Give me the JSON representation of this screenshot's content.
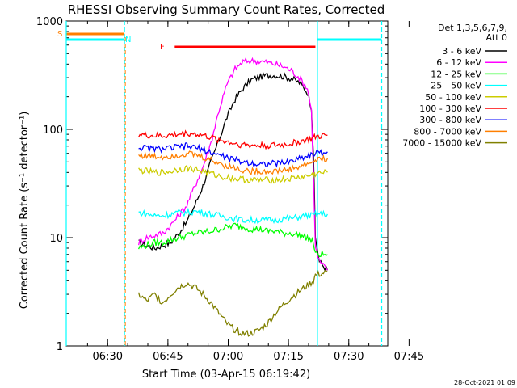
{
  "chart_data": {
    "type": "line",
    "title": "RHESSI Observing Summary Count Rates, Corrected",
    "xlabel": "Start Time (03-Apr-15 06:19:42)",
    "ylabel": "Corrected Count Rate (s⁻¹ detector⁻¹)",
    "yscale": "log",
    "ylim": [
      1,
      1000
    ],
    "xlim_minutes": [
      0,
      80
    ],
    "x_ticks": [
      "06:30",
      "06:45",
      "07:00",
      "07:15",
      "07:30",
      "07:45"
    ],
    "y_ticks": [
      "1",
      "10",
      "100",
      "1000"
    ],
    "legend_header": [
      "Det 1,3,5,6,7,9,",
      "Att 0"
    ],
    "timestamp": "28-Oct-2021 01:09",
    "flags": [
      {
        "label": "S",
        "color": "#ff7f00"
      },
      {
        "label": "N",
        "color": "#00ffff"
      },
      {
        "label": "F",
        "color": "#ff0000"
      }
    ],
    "series": [
      {
        "name": "3 - 6 keV",
        "color": "#000000",
        "points": [
          [
            18,
            9
          ],
          [
            20,
            8.5
          ],
          [
            22,
            8
          ],
          [
            24,
            8.5
          ],
          [
            26,
            9
          ],
          [
            28,
            11
          ],
          [
            30,
            14
          ],
          [
            32,
            20
          ],
          [
            34,
            30
          ],
          [
            36,
            50
          ],
          [
            38,
            80
          ],
          [
            40,
            130
          ],
          [
            42,
            190
          ],
          [
            44,
            240
          ],
          [
            46,
            285
          ],
          [
            48,
            305
          ],
          [
            50,
            315
          ],
          [
            52,
            315
          ],
          [
            54,
            308
          ],
          [
            56,
            295
          ],
          [
            58,
            270
          ],
          [
            60,
            220
          ],
          [
            61,
            160
          ],
          [
            61.5,
            60
          ],
          [
            62,
            10
          ],
          [
            63,
            6
          ],
          [
            65,
            5
          ]
        ]
      },
      {
        "name": "6 - 12 keV",
        "color": "#ff00ff",
        "points": [
          [
            18,
            9
          ],
          [
            20,
            10
          ],
          [
            22,
            10.5
          ],
          [
            24,
            11
          ],
          [
            26,
            13
          ],
          [
            28,
            16
          ],
          [
            30,
            20
          ],
          [
            32,
            30
          ],
          [
            34,
            45
          ],
          [
            36,
            75
          ],
          [
            38,
            150
          ],
          [
            40,
            260
          ],
          [
            42,
            360
          ],
          [
            44,
            420
          ],
          [
            46,
            430
          ],
          [
            48,
            425
          ],
          [
            50,
            415
          ],
          [
            52,
            400
          ],
          [
            54,
            380
          ],
          [
            56,
            350
          ],
          [
            58,
            300
          ],
          [
            60,
            240
          ],
          [
            61,
            150
          ],
          [
            61.5,
            40
          ],
          [
            62,
            8
          ],
          [
            63,
            6
          ],
          [
            65,
            5
          ]
        ]
      },
      {
        "name": "12 - 25 keV",
        "color": "#00ff00",
        "points": [
          [
            18,
            8
          ],
          [
            20,
            8.5
          ],
          [
            22,
            9
          ],
          [
            24,
            9
          ],
          [
            26,
            9.5
          ],
          [
            28,
            10
          ],
          [
            30,
            10.5
          ],
          [
            32,
            11
          ],
          [
            34,
            11.2
          ],
          [
            36,
            11.5
          ],
          [
            38,
            12
          ],
          [
            40,
            12.5
          ],
          [
            42,
            13
          ],
          [
            44,
            12.5
          ],
          [
            46,
            12
          ],
          [
            48,
            12
          ],
          [
            50,
            11.5
          ],
          [
            52,
            11.5
          ],
          [
            54,
            11
          ],
          [
            56,
            11
          ],
          [
            58,
            10.5
          ],
          [
            60,
            10
          ],
          [
            61.5,
            9
          ],
          [
            62,
            7
          ],
          [
            65,
            7
          ]
        ]
      },
      {
        "name": "25 - 50 keV",
        "color": "#00ffff",
        "points": [
          [
            18,
            17
          ],
          [
            20,
            16.5
          ],
          [
            22,
            16
          ],
          [
            24,
            16
          ],
          [
            26,
            16.5
          ],
          [
            28,
            17
          ],
          [
            30,
            17
          ],
          [
            32,
            17.5
          ],
          [
            34,
            17
          ],
          [
            36,
            16.5
          ],
          [
            38,
            16
          ],
          [
            40,
            15.5
          ],
          [
            42,
            15
          ],
          [
            44,
            14.5
          ],
          [
            46,
            14.5
          ],
          [
            48,
            14.5
          ],
          [
            50,
            14.5
          ],
          [
            52,
            14.5
          ],
          [
            54,
            15
          ],
          [
            56,
            15
          ],
          [
            58,
            15.5
          ],
          [
            60,
            16
          ],
          [
            61.5,
            16
          ],
          [
            62,
            16.5
          ],
          [
            65,
            16.5
          ]
        ]
      },
      {
        "name": "50 - 100 keV",
        "color": "#cccc00",
        "points": [
          [
            18,
            42
          ],
          [
            20,
            41
          ],
          [
            22,
            40
          ],
          [
            24,
            40
          ],
          [
            26,
            41
          ],
          [
            28,
            43
          ],
          [
            30,
            44
          ],
          [
            32,
            43
          ],
          [
            34,
            41
          ],
          [
            36,
            39
          ],
          [
            38,
            37
          ],
          [
            40,
            36
          ],
          [
            42,
            35
          ],
          [
            44,
            34.5
          ],
          [
            46,
            34
          ],
          [
            48,
            34
          ],
          [
            50,
            34
          ],
          [
            52,
            34
          ],
          [
            54,
            34.5
          ],
          [
            56,
            35
          ],
          [
            58,
            36
          ],
          [
            60,
            37
          ],
          [
            61.5,
            38
          ],
          [
            62,
            39
          ],
          [
            65,
            40
          ]
        ]
      },
      {
        "name": "100 - 300 keV",
        "color": "#ff0000",
        "points": [
          [
            18,
            90
          ],
          [
            20,
            88
          ],
          [
            22,
            87
          ],
          [
            24,
            87
          ],
          [
            26,
            88
          ],
          [
            28,
            90
          ],
          [
            30,
            92
          ],
          [
            32,
            91
          ],
          [
            34,
            88
          ],
          [
            36,
            84
          ],
          [
            38,
            80
          ],
          [
            40,
            77
          ],
          [
            42,
            74
          ],
          [
            44,
            72
          ],
          [
            46,
            71
          ],
          [
            48,
            71
          ],
          [
            50,
            71
          ],
          [
            52,
            71
          ],
          [
            54,
            72
          ],
          [
            56,
            74
          ],
          [
            58,
            77
          ],
          [
            60,
            80
          ],
          [
            61.5,
            83
          ],
          [
            62,
            85
          ],
          [
            65,
            88
          ]
        ]
      },
      {
        "name": "300 - 800 keV",
        "color": "#0000ff",
        "points": [
          [
            18,
            68
          ],
          [
            20,
            67
          ],
          [
            22,
            66
          ],
          [
            24,
            66
          ],
          [
            26,
            67
          ],
          [
            28,
            69
          ],
          [
            30,
            70
          ],
          [
            32,
            68
          ],
          [
            34,
            65
          ],
          [
            36,
            61
          ],
          [
            38,
            58
          ],
          [
            40,
            55
          ],
          [
            42,
            52
          ],
          [
            44,
            50
          ],
          [
            46,
            49
          ],
          [
            48,
            48
          ],
          [
            50,
            48
          ],
          [
            52,
            48.5
          ],
          [
            54,
            49
          ],
          [
            56,
            51
          ],
          [
            58,
            54
          ],
          [
            60,
            57
          ],
          [
            61.5,
            59
          ],
          [
            62,
            60
          ],
          [
            65,
            62
          ]
        ]
      },
      {
        "name": "800 - 7000 keV",
        "color": "#ff7f00",
        "points": [
          [
            18,
            58
          ],
          [
            20,
            57
          ],
          [
            22,
            56
          ],
          [
            24,
            56
          ],
          [
            26,
            57
          ],
          [
            28,
            58
          ],
          [
            30,
            60
          ],
          [
            32,
            58
          ],
          [
            34,
            55
          ],
          [
            36,
            52
          ],
          [
            38,
            49
          ],
          [
            40,
            46
          ],
          [
            42,
            44
          ],
          [
            44,
            42
          ],
          [
            46,
            41
          ],
          [
            48,
            41
          ],
          [
            50,
            41
          ],
          [
            52,
            41
          ],
          [
            54,
            42
          ],
          [
            56,
            43
          ],
          [
            58,
            45
          ],
          [
            60,
            48
          ],
          [
            61.5,
            50
          ],
          [
            62,
            52
          ],
          [
            65,
            54
          ]
        ]
      },
      {
        "name": "7000 - 15000 keV",
        "color": "#808000",
        "points": [
          [
            18,
            3
          ],
          [
            20,
            2.6
          ],
          [
            22,
            3
          ],
          [
            24,
            2.5
          ],
          [
            26,
            3
          ],
          [
            28,
            3.5
          ],
          [
            30,
            3.8
          ],
          [
            32,
            3.5
          ],
          [
            34,
            3
          ],
          [
            36,
            2.5
          ],
          [
            38,
            2
          ],
          [
            40,
            1.6
          ],
          [
            42,
            1.4
          ],
          [
            44,
            1.3
          ],
          [
            46,
            1.3
          ],
          [
            48,
            1.4
          ],
          [
            50,
            1.6
          ],
          [
            52,
            2
          ],
          [
            54,
            2.4
          ],
          [
            56,
            2.8
          ],
          [
            58,
            3.2
          ],
          [
            60,
            3.6
          ],
          [
            61.5,
            4
          ],
          [
            62,
            4.5
          ],
          [
            65,
            4.8
          ]
        ]
      }
    ]
  }
}
